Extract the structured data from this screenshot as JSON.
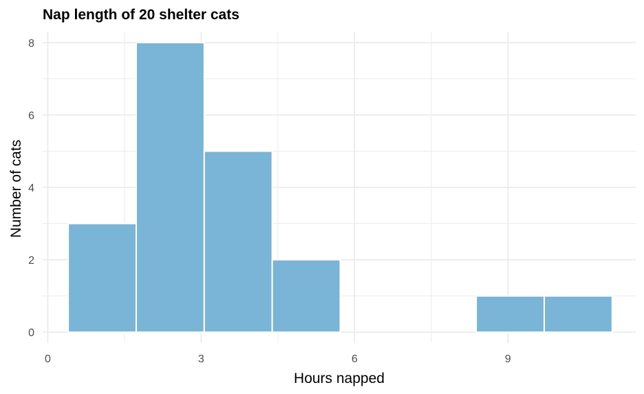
{
  "chart_data": {
    "type": "bar",
    "title": "Nap length of 20 shelter cats",
    "xlabel": "Hours napped",
    "ylabel": "Number of cats",
    "bin_edges": [
      0.4,
      1.73,
      3.06,
      4.39,
      5.72,
      7.05,
      8.38,
      9.71,
      11.04
    ],
    "values": [
      3,
      8,
      5,
      2,
      0,
      0,
      1,
      1
    ],
    "xlim": [
      -0.1,
      11.5
    ],
    "ylim": [
      -0.3,
      8.3
    ],
    "x_ticks": [
      0,
      3,
      6,
      9
    ],
    "y_ticks": [
      0,
      2,
      4,
      6,
      8
    ],
    "bar_color": "#7ab4d7",
    "grid": true
  }
}
